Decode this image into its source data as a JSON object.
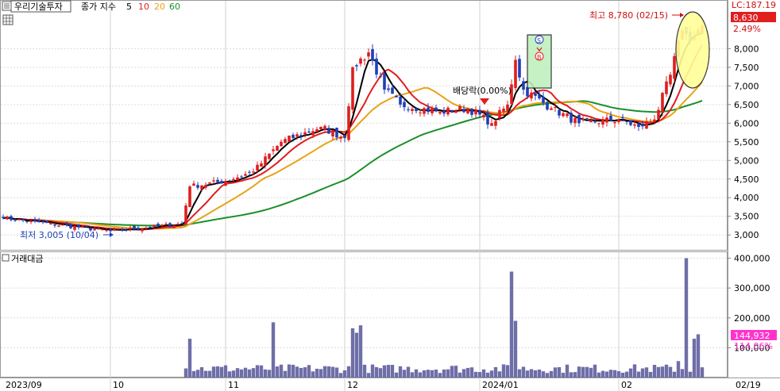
{
  "header": {
    "stock_name": "우리기술투자",
    "legend_prefix": "종가 지수",
    "ma_labels": [
      "5",
      "10",
      "20",
      "60"
    ]
  },
  "colors": {
    "up": "#e01e1e",
    "down": "#1f3fb8",
    "ma5": "#000000",
    "ma10": "#e01e1e",
    "ma20": "#e8a317",
    "ma60": "#1a8f2a",
    "volume": "#6e6ea8",
    "price_tag_bg": "#e01e1e",
    "volume_tag_bg": "#ff33cc",
    "highlight_box": "#bff0bf",
    "highlight_ellipse": "#ffff99"
  },
  "top_right": {
    "lc_label": "LC:187.19",
    "last_price": "8,630",
    "change_pct": "2.49%"
  },
  "volume_panel": {
    "title": "거래대금",
    "last_value": "144,932",
    "change_pct": "114.06%"
  },
  "annotations": {
    "high": "최고 8,780 (02/15)",
    "low": "최저 3,005 (10/04)",
    "dividend": "배당락(0.00%)",
    "sell_marker": "S",
    "buy_marker": "B"
  },
  "chart_data": {
    "type": "candlestick",
    "price_axis": {
      "ylim": [
        2600,
        9200
      ],
      "ticks": [
        "3,000",
        "3,500",
        "4,000",
        "4,500",
        "5,000",
        "5,500",
        "6,000",
        "6,500",
        "7,000",
        "7,500",
        "8,000"
      ]
    },
    "volume_axis": {
      "ylim": [
        0,
        420000
      ],
      "ticks": [
        "100,000",
        "200,000",
        "300,000",
        "400,000"
      ]
    },
    "x_labels": [
      "2023/09",
      "10",
      "11",
      "12",
      "2024/01",
      "02",
      "02/19"
    ],
    "x_label_positions": [
      0,
      27,
      56,
      86,
      120,
      155,
      186
    ],
    "n_bars": 177,
    "key_points": [
      {
        "day": 0,
        "close": 3450
      },
      {
        "day": 27,
        "close": 3100
      },
      {
        "day": 45,
        "close": 3300
      },
      {
        "day": 47,
        "close": 4300
      },
      {
        "day": 56,
        "close": 4450
      },
      {
        "day": 63,
        "close": 4700
      },
      {
        "day": 70,
        "close": 5500
      },
      {
        "day": 80,
        "close": 5900
      },
      {
        "day": 86,
        "close": 5600
      },
      {
        "day": 88,
        "close": 7500
      },
      {
        "day": 92,
        "close": 7900
      },
      {
        "day": 96,
        "close": 6900
      },
      {
        "day": 100,
        "close": 6500
      },
      {
        "day": 110,
        "close": 6300
      },
      {
        "day": 117,
        "close": 6400
      },
      {
        "day": 123,
        "close": 6000
      },
      {
        "day": 127,
        "close": 6500
      },
      {
        "day": 129,
        "close": 7700
      },
      {
        "day": 131,
        "close": 6900
      },
      {
        "day": 138,
        "close": 6400
      },
      {
        "day": 145,
        "close": 6000
      },
      {
        "day": 155,
        "close": 6100
      },
      {
        "day": 160,
        "close": 5900
      },
      {
        "day": 164,
        "close": 6100
      },
      {
        "day": 168,
        "close": 7300
      },
      {
        "day": 171,
        "close": 8500
      },
      {
        "day": 173,
        "close": 8200
      },
      {
        "day": 176,
        "close": 8630
      }
    ],
    "volume_spikes": [
      {
        "day": 47,
        "value": 130000
      },
      {
        "day": 68,
        "value": 185000
      },
      {
        "day": 88,
        "value": 165000
      },
      {
        "day": 89,
        "value": 150000
      },
      {
        "day": 90,
        "value": 175000
      },
      {
        "day": 128,
        "value": 355000
      },
      {
        "day": 129,
        "value": 190000
      },
      {
        "day": 172,
        "value": 400000
      },
      {
        "day": 170,
        "value": 55000
      },
      {
        "day": 174,
        "value": 130000
      },
      {
        "day": 175,
        "value": 144932
      }
    ]
  }
}
